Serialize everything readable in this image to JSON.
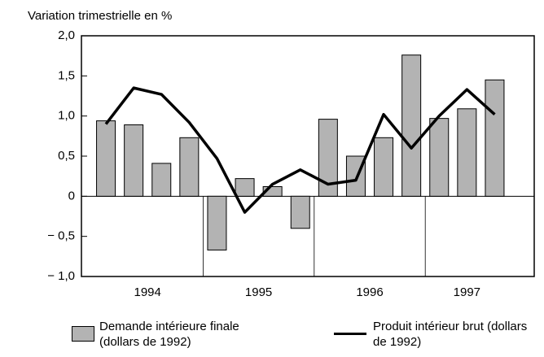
{
  "chart_data": {
    "type": "bar_line",
    "y_axis_label": "Variation trimestrielle en %",
    "categories": [
      null,
      null,
      null,
      null,
      null,
      null,
      null,
      null,
      null,
      null,
      null,
      null,
      null,
      null,
      null
    ],
    "year_labels": [
      "1994",
      "1995",
      "1996",
      "1997"
    ],
    "series": [
      {
        "name": "Demande intérieure finale (dollars de 1992)",
        "type": "bar",
        "color": "#b3b3b3",
        "values": [
          0.94,
          0.89,
          0.41,
          0.73,
          -0.67,
          0.22,
          0.12,
          -0.4,
          0.96,
          0.5,
          0.73,
          1.76,
          0.97,
          1.09,
          1.45
        ]
      },
      {
        "name": "Produit intérieur brut (dollars de 1992)",
        "type": "line",
        "color": "#000000",
        "values": [
          0.9,
          1.35,
          1.27,
          0.92,
          0.47,
          -0.2,
          0.15,
          0.33,
          0.15,
          0.2,
          1.02,
          0.6,
          1.0,
          1.33,
          1.02
        ]
      }
    ],
    "ylim": [
      -1.0,
      2.0
    ],
    "yticks": [
      {
        "value": 2.0,
        "label": "2,0"
      },
      {
        "value": 1.5,
        "label": "1,5"
      },
      {
        "value": 1.0,
        "label": "1,0"
      },
      {
        "value": 0.5,
        "label": "0,5"
      },
      0,
      {
        "value": -0.5,
        "label": "− 0,5"
      },
      {
        "value": -1.0,
        "label": "− 1,0"
      }
    ],
    "grid": false
  }
}
